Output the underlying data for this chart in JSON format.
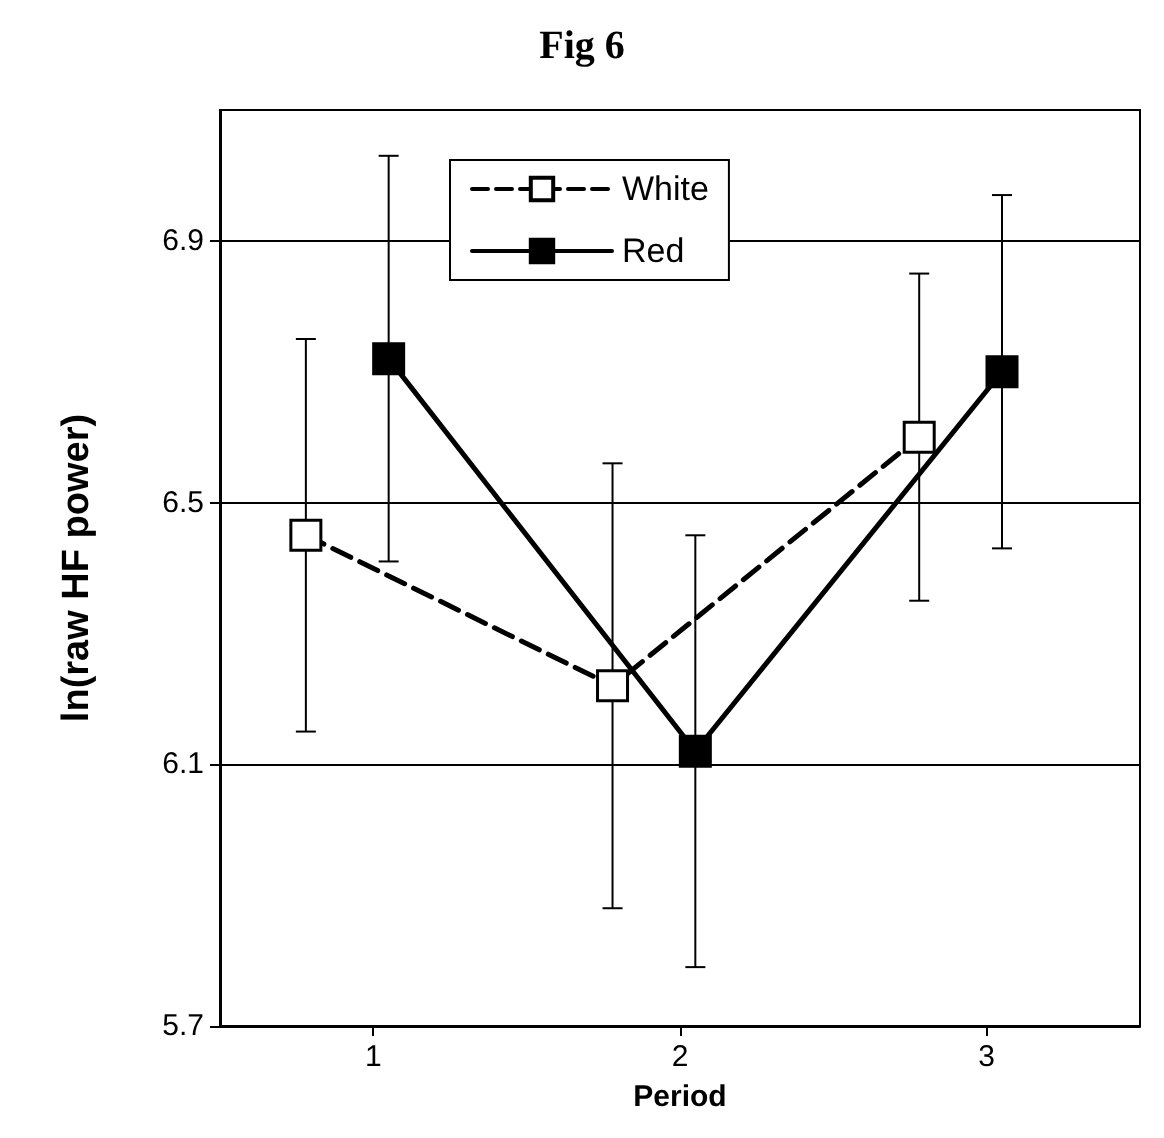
{
  "chart_data": {
    "type": "line",
    "title": "Fig 6",
    "xlabel": "Period",
    "ylabel": "ln(raw HF power)",
    "series": [
      {
        "name": "White",
        "color": "#000000",
        "line_style": "dashed",
        "x": [
          0.78,
          1.78,
          2.78
        ],
        "values": [
          6.45,
          6.22,
          6.6
        ],
        "errors": [
          0.3,
          0.34,
          0.25
        ]
      },
      {
        "name": "Red",
        "color": "#000000",
        "line_style": "solid",
        "x": [
          1.05,
          2.05,
          3.05
        ],
        "values": [
          6.72,
          6.12,
          6.7
        ],
        "errors": [
          0.31,
          0.33,
          0.27
        ]
      }
    ],
    "xlim": [
      0.5,
      3.5
    ],
    "xticks": [
      1,
      2,
      3
    ],
    "ylim": [
      5.7,
      7.1
    ],
    "yticks": [
      5.7,
      6.1,
      6.5,
      6.9
    ],
    "grid": "y",
    "legend": "top",
    "marker": "square"
  }
}
